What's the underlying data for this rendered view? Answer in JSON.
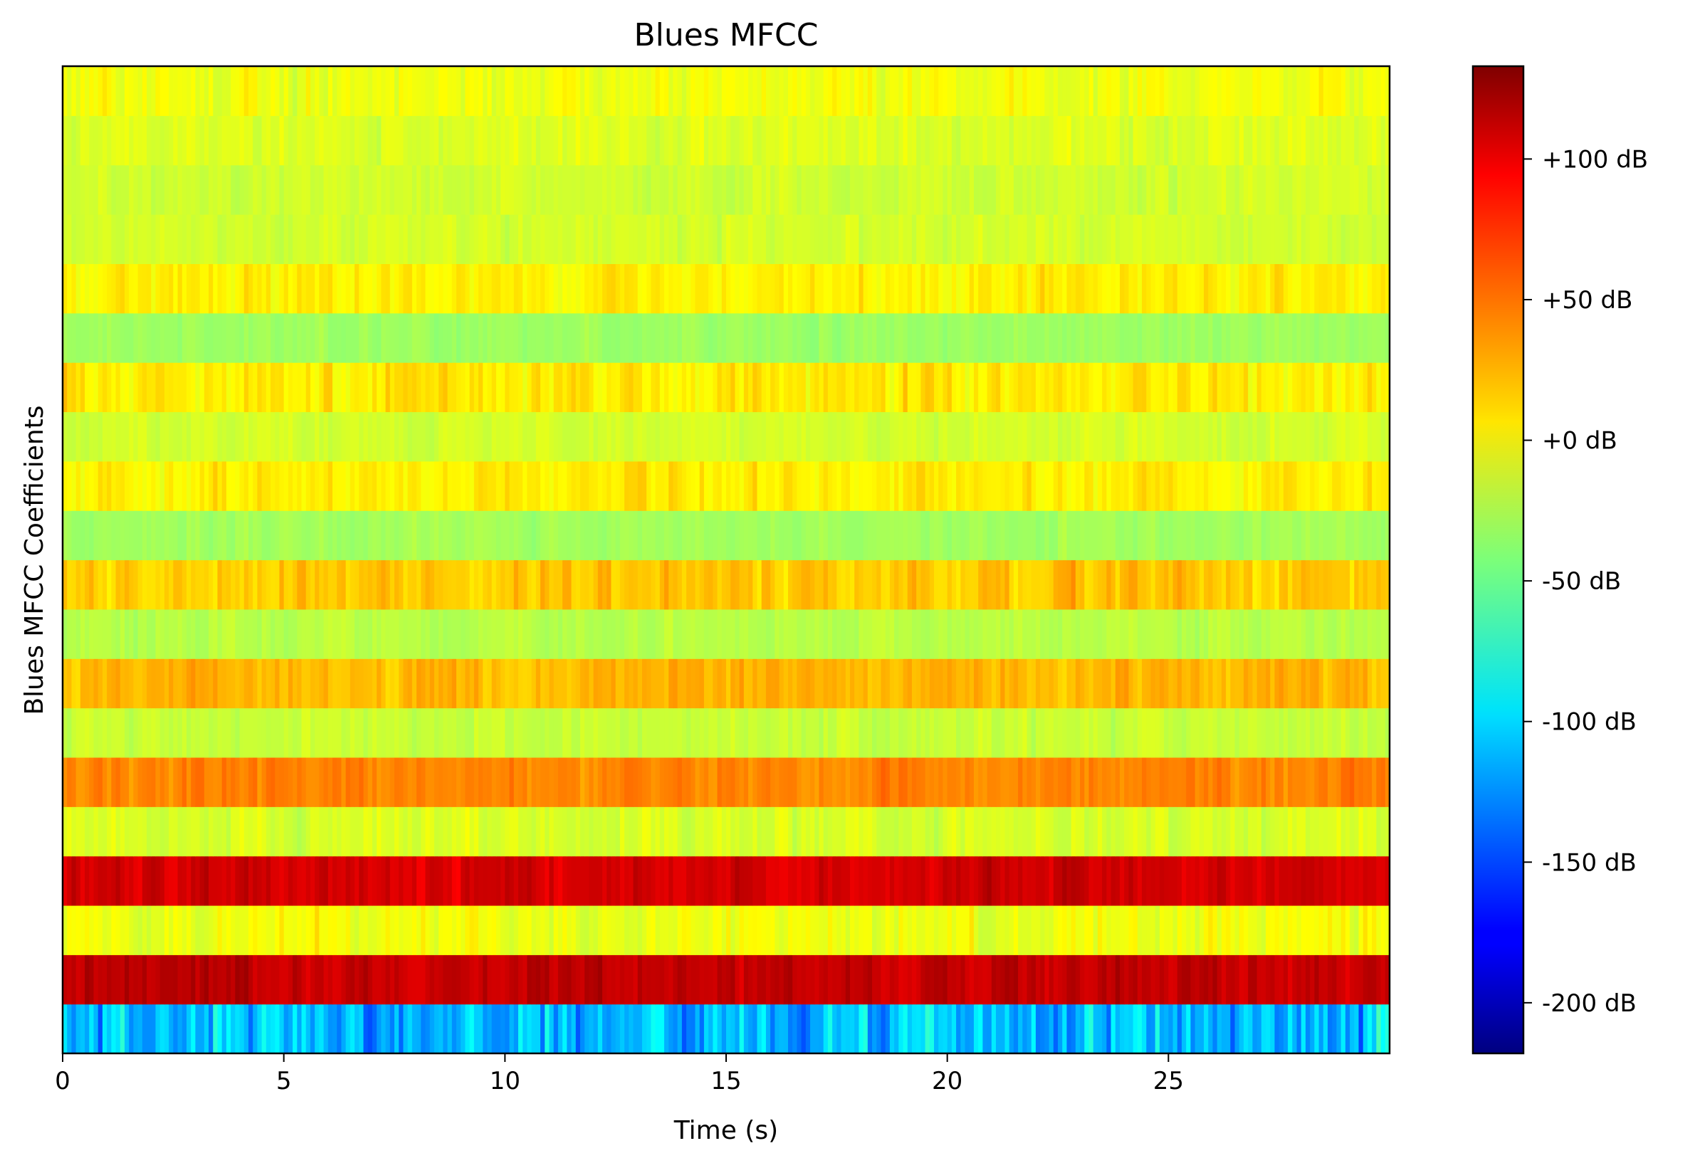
{
  "chart_data": {
    "type": "heatmap",
    "title": "Blues MFCC",
    "xlabel": "Time (s)",
    "ylabel": "Blues MFCC Coefficients",
    "xlim": [
      0,
      30
    ],
    "x_ticks": [
      0,
      5,
      10,
      15,
      20,
      25
    ],
    "x_tick_labels": [
      "0",
      "5",
      "10",
      "15",
      "20",
      "25"
    ],
    "y_ticks": [],
    "colormap": "jet",
    "clim": [
      -218,
      133
    ],
    "colorbar": {
      "ticks": [
        100,
        50,
        0,
        -50,
        -100,
        -150,
        -200
      ],
      "tick_labels": [
        "+100 dB",
        "+50 dB",
        "+0 dB",
        "-50 dB",
        "-100 dB",
        "-150 dB",
        "-200 dB"
      ]
    },
    "n_coefficients": 20,
    "n_frames": 300,
    "rows_bottom_to_top": [
      {
        "mean": -110,
        "spread": 26
      },
      {
        "mean": 110,
        "spread": 8
      },
      {
        "mean": -3,
        "spread": 9
      },
      {
        "mean": 104,
        "spread": 8
      },
      {
        "mean": -12,
        "spread": 7
      },
      {
        "mean": 43,
        "spread": 7
      },
      {
        "mean": -18,
        "spread": 6
      },
      {
        "mean": 26,
        "spread": 8
      },
      {
        "mean": -23,
        "spread": 5
      },
      {
        "mean": 20,
        "spread": 10
      },
      {
        "mean": -30,
        "spread": 4
      },
      {
        "mean": 7,
        "spread": 8
      },
      {
        "mean": -13,
        "spread": 5
      },
      {
        "mean": 8,
        "spread": 10
      },
      {
        "mean": -32,
        "spread": 4
      },
      {
        "mean": 6,
        "spread": 8
      },
      {
        "mean": -14,
        "spread": 5
      },
      {
        "mean": -15,
        "spread": 5
      },
      {
        "mean": -10,
        "spread": 6
      },
      {
        "mean": -3,
        "spread": 8
      }
    ]
  }
}
